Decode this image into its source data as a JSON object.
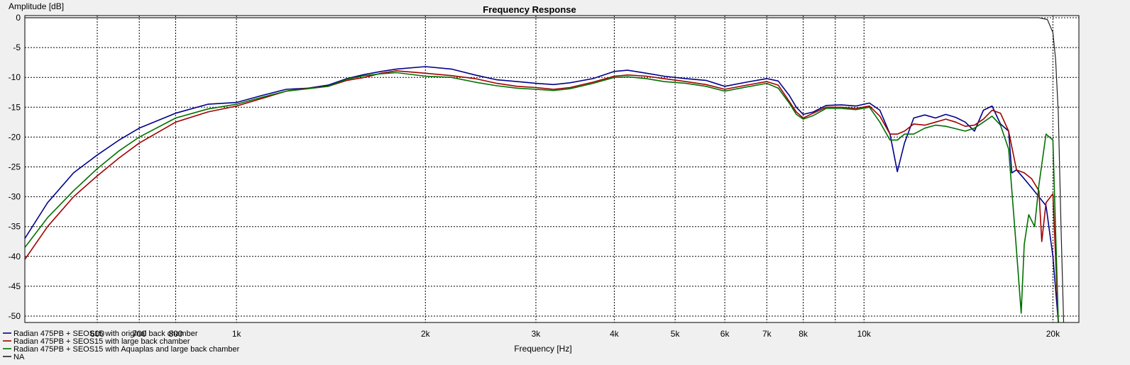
{
  "chart_data": {
    "type": "line",
    "title": "Frequency Response",
    "xlabel": "Frequency [Hz]",
    "ylabel": "Amplitude [dB]",
    "xscale": "log",
    "xlim": [
      460,
      22000
    ],
    "ylim": [
      -51,
      0
    ],
    "grid": true,
    "legend_position": "bottom-left",
    "x_ticks": [
      {
        "value": 600,
        "label": "600"
      },
      {
        "value": 700,
        "label": "700"
      },
      {
        "value": 800,
        "label": "800"
      },
      {
        "value": 1000,
        "label": "1k"
      },
      {
        "value": 2000,
        "label": "2k"
      },
      {
        "value": 3000,
        "label": "3k"
      },
      {
        "value": 4000,
        "label": "4k"
      },
      {
        "value": 5000,
        "label": "5k"
      },
      {
        "value": 6000,
        "label": "6k"
      },
      {
        "value": 7000,
        "label": "7k"
      },
      {
        "value": 8000,
        "label": "8k"
      },
      {
        "value": 10000,
        "label": "10k"
      },
      {
        "value": 20000,
        "label": "20k"
      }
    ],
    "x_minor_grid": [
      9000
    ],
    "y_ticks": [
      0,
      -5,
      -10,
      -15,
      -20,
      -25,
      -30,
      -35,
      -40,
      -45,
      -50
    ],
    "series": [
      {
        "name": "Radian 475PB + SEOS15 with original back chamber",
        "color": "#00008b",
        "points": [
          [
            460,
            -37
          ],
          [
            500,
            -31
          ],
          [
            550,
            -26
          ],
          [
            600,
            -23
          ],
          [
            650,
            -20.5
          ],
          [
            700,
            -18.5
          ],
          [
            800,
            -16
          ],
          [
            900,
            -14.5
          ],
          [
            1000,
            -14.2
          ],
          [
            1100,
            -13
          ],
          [
            1200,
            -12
          ],
          [
            1300,
            -11.8
          ],
          [
            1400,
            -11.3
          ],
          [
            1500,
            -10.2
          ],
          [
            1600,
            -9.5
          ],
          [
            1700,
            -9.0
          ],
          [
            1800,
            -8.6
          ],
          [
            2000,
            -8.2
          ],
          [
            2200,
            -8.6
          ],
          [
            2400,
            -9.6
          ],
          [
            2600,
            -10.4
          ],
          [
            2800,
            -10.7
          ],
          [
            3000,
            -11.0
          ],
          [
            3200,
            -11.2
          ],
          [
            3400,
            -10.9
          ],
          [
            3700,
            -10.2
          ],
          [
            4000,
            -9.0
          ],
          [
            4200,
            -8.8
          ],
          [
            4500,
            -9.3
          ],
          [
            4800,
            -9.8
          ],
          [
            5200,
            -10.2
          ],
          [
            5600,
            -10.5
          ],
          [
            6000,
            -11.5
          ],
          [
            6500,
            -10.8
          ],
          [
            7000,
            -10.2
          ],
          [
            7300,
            -10.6
          ],
          [
            7600,
            -13.0
          ],
          [
            7800,
            -15.0
          ],
          [
            8000,
            -16.2
          ],
          [
            8300,
            -15.8
          ],
          [
            8700,
            -14.7
          ],
          [
            9200,
            -14.6
          ],
          [
            9700,
            -14.8
          ],
          [
            10200,
            -14.3
          ],
          [
            10600,
            -15.5
          ],
          [
            11000,
            -19.5
          ],
          [
            11300,
            -25.8
          ],
          [
            11600,
            -21.0
          ],
          [
            12000,
            -16.8
          ],
          [
            12500,
            -16.3
          ],
          [
            13000,
            -16.8
          ],
          [
            13500,
            -16.2
          ],
          [
            14000,
            -16.7
          ],
          [
            14500,
            -17.5
          ],
          [
            15000,
            -19.0
          ],
          [
            15500,
            -15.5
          ],
          [
            16000,
            -14.8
          ],
          [
            16500,
            -17.8
          ],
          [
            17000,
            -19.0
          ],
          [
            17200,
            -26.0
          ],
          [
            17500,
            -25.5
          ],
          [
            18000,
            -27.0
          ],
          [
            18500,
            -28.5
          ],
          [
            19000,
            -30.0
          ],
          [
            19500,
            -31.5
          ],
          [
            20000,
            -40.0
          ],
          [
            20200,
            -45.5
          ],
          [
            20400,
            -51
          ]
        ]
      },
      {
        "name": "Radian 475PB + SEOS15 with large back chamber",
        "color": "#a00000",
        "points": [
          [
            460,
            -40.5
          ],
          [
            500,
            -35
          ],
          [
            550,
            -30
          ],
          [
            600,
            -26.5
          ],
          [
            650,
            -23.5
          ],
          [
            700,
            -21
          ],
          [
            800,
            -17.5
          ],
          [
            900,
            -15.8
          ],
          [
            1000,
            -14.8
          ],
          [
            1100,
            -13.5
          ],
          [
            1200,
            -12.3
          ],
          [
            1300,
            -11.8
          ],
          [
            1400,
            -11.5
          ],
          [
            1500,
            -10.5
          ],
          [
            1600,
            -10.0
          ],
          [
            1700,
            -9.3
          ],
          [
            1800,
            -8.9
          ],
          [
            2000,
            -9.3
          ],
          [
            2200,
            -9.7
          ],
          [
            2400,
            -10.2
          ],
          [
            2600,
            -11.0
          ],
          [
            2800,
            -11.5
          ],
          [
            3000,
            -11.7
          ],
          [
            3200,
            -12.0
          ],
          [
            3400,
            -11.7
          ],
          [
            3700,
            -10.8
          ],
          [
            4000,
            -9.8
          ],
          [
            4200,
            -9.6
          ],
          [
            4500,
            -9.8
          ],
          [
            4800,
            -10.2
          ],
          [
            5200,
            -10.7
          ],
          [
            5600,
            -11.2
          ],
          [
            6000,
            -12.0
          ],
          [
            6500,
            -11.3
          ],
          [
            7000,
            -10.7
          ],
          [
            7300,
            -11.3
          ],
          [
            7600,
            -14.0
          ],
          [
            7800,
            -15.8
          ],
          [
            8000,
            -16.8
          ],
          [
            8300,
            -16.0
          ],
          [
            8700,
            -15.0
          ],
          [
            9200,
            -15.0
          ],
          [
            9700,
            -15.2
          ],
          [
            10200,
            -14.8
          ],
          [
            10600,
            -16.5
          ],
          [
            11000,
            -19.5
          ],
          [
            11300,
            -19.5
          ],
          [
            11600,
            -19.0
          ],
          [
            12000,
            -17.8
          ],
          [
            12500,
            -18.0
          ],
          [
            13000,
            -17.5
          ],
          [
            13500,
            -17.0
          ],
          [
            14000,
            -17.5
          ],
          [
            14500,
            -18.2
          ],
          [
            15000,
            -18.0
          ],
          [
            15500,
            -17.0
          ],
          [
            16000,
            -15.5
          ],
          [
            16500,
            -16.0
          ],
          [
            17000,
            -19.0
          ],
          [
            17500,
            -25.5
          ],
          [
            18000,
            -26.0
          ],
          [
            18500,
            -27.0
          ],
          [
            19000,
            -29.0
          ],
          [
            19200,
            -37.5
          ],
          [
            19500,
            -31.0
          ],
          [
            20000,
            -29.5
          ],
          [
            20400,
            -51
          ]
        ]
      },
      {
        "name": "Radian 475PB + SEOS15 with Aquaplas and large back chamber",
        "color": "#007000",
        "points": [
          [
            460,
            -38.5
          ],
          [
            500,
            -33.5
          ],
          [
            550,
            -29
          ],
          [
            600,
            -25.3
          ],
          [
            650,
            -22.3
          ],
          [
            700,
            -20
          ],
          [
            800,
            -16.8
          ],
          [
            900,
            -15.3
          ],
          [
            1000,
            -14.5
          ],
          [
            1100,
            -13.3
          ],
          [
            1200,
            -12.3
          ],
          [
            1300,
            -11.9
          ],
          [
            1400,
            -11.5
          ],
          [
            1500,
            -10.3
          ],
          [
            1600,
            -9.7
          ],
          [
            1700,
            -9.4
          ],
          [
            1800,
            -9.2
          ],
          [
            2000,
            -9.8
          ],
          [
            2200,
            -10.0
          ],
          [
            2400,
            -10.8
          ],
          [
            2600,
            -11.4
          ],
          [
            2800,
            -11.8
          ],
          [
            3000,
            -12.0
          ],
          [
            3200,
            -12.2
          ],
          [
            3400,
            -11.9
          ],
          [
            3700,
            -11.0
          ],
          [
            4000,
            -10.0
          ],
          [
            4200,
            -9.9
          ],
          [
            4500,
            -10.2
          ],
          [
            4800,
            -10.7
          ],
          [
            5200,
            -11.0
          ],
          [
            5600,
            -11.5
          ],
          [
            6000,
            -12.3
          ],
          [
            6500,
            -11.6
          ],
          [
            7000,
            -11.0
          ],
          [
            7300,
            -11.8
          ],
          [
            7600,
            -14.3
          ],
          [
            7800,
            -16.2
          ],
          [
            8000,
            -17.0
          ],
          [
            8300,
            -16.4
          ],
          [
            8700,
            -15.2
          ],
          [
            9200,
            -15.2
          ],
          [
            9700,
            -15.4
          ],
          [
            10200,
            -15.0
          ],
          [
            10600,
            -17.5
          ],
          [
            11000,
            -20.5
          ],
          [
            11300,
            -20.5
          ],
          [
            11600,
            -19.5
          ],
          [
            12000,
            -19.5
          ],
          [
            12500,
            -18.5
          ],
          [
            13000,
            -18.0
          ],
          [
            13500,
            -18.2
          ],
          [
            14000,
            -18.6
          ],
          [
            14500,
            -19.0
          ],
          [
            15000,
            -18.5
          ],
          [
            15500,
            -17.5
          ],
          [
            16000,
            -16.5
          ],
          [
            16500,
            -18.0
          ],
          [
            17000,
            -22.0
          ],
          [
            17500,
            -39.0
          ],
          [
            17800,
            -49.5
          ],
          [
            18000,
            -38.0
          ],
          [
            18300,
            -33.0
          ],
          [
            18700,
            -35.0
          ],
          [
            19000,
            -28.0
          ],
          [
            19500,
            -19.5
          ],
          [
            20000,
            -20.5
          ],
          [
            20400,
            -51
          ]
        ]
      },
      {
        "name": "NA",
        "color": "#202020",
        "points": [
          [
            460,
            0
          ],
          [
            1000,
            0
          ],
          [
            10000,
            0
          ],
          [
            19000,
            0
          ],
          [
            19600,
            -0.3
          ],
          [
            20000,
            -2.5
          ],
          [
            20200,
            -7.0
          ],
          [
            20400,
            -16.0
          ],
          [
            20600,
            -35.0
          ],
          [
            20800,
            -51
          ]
        ]
      }
    ]
  }
}
